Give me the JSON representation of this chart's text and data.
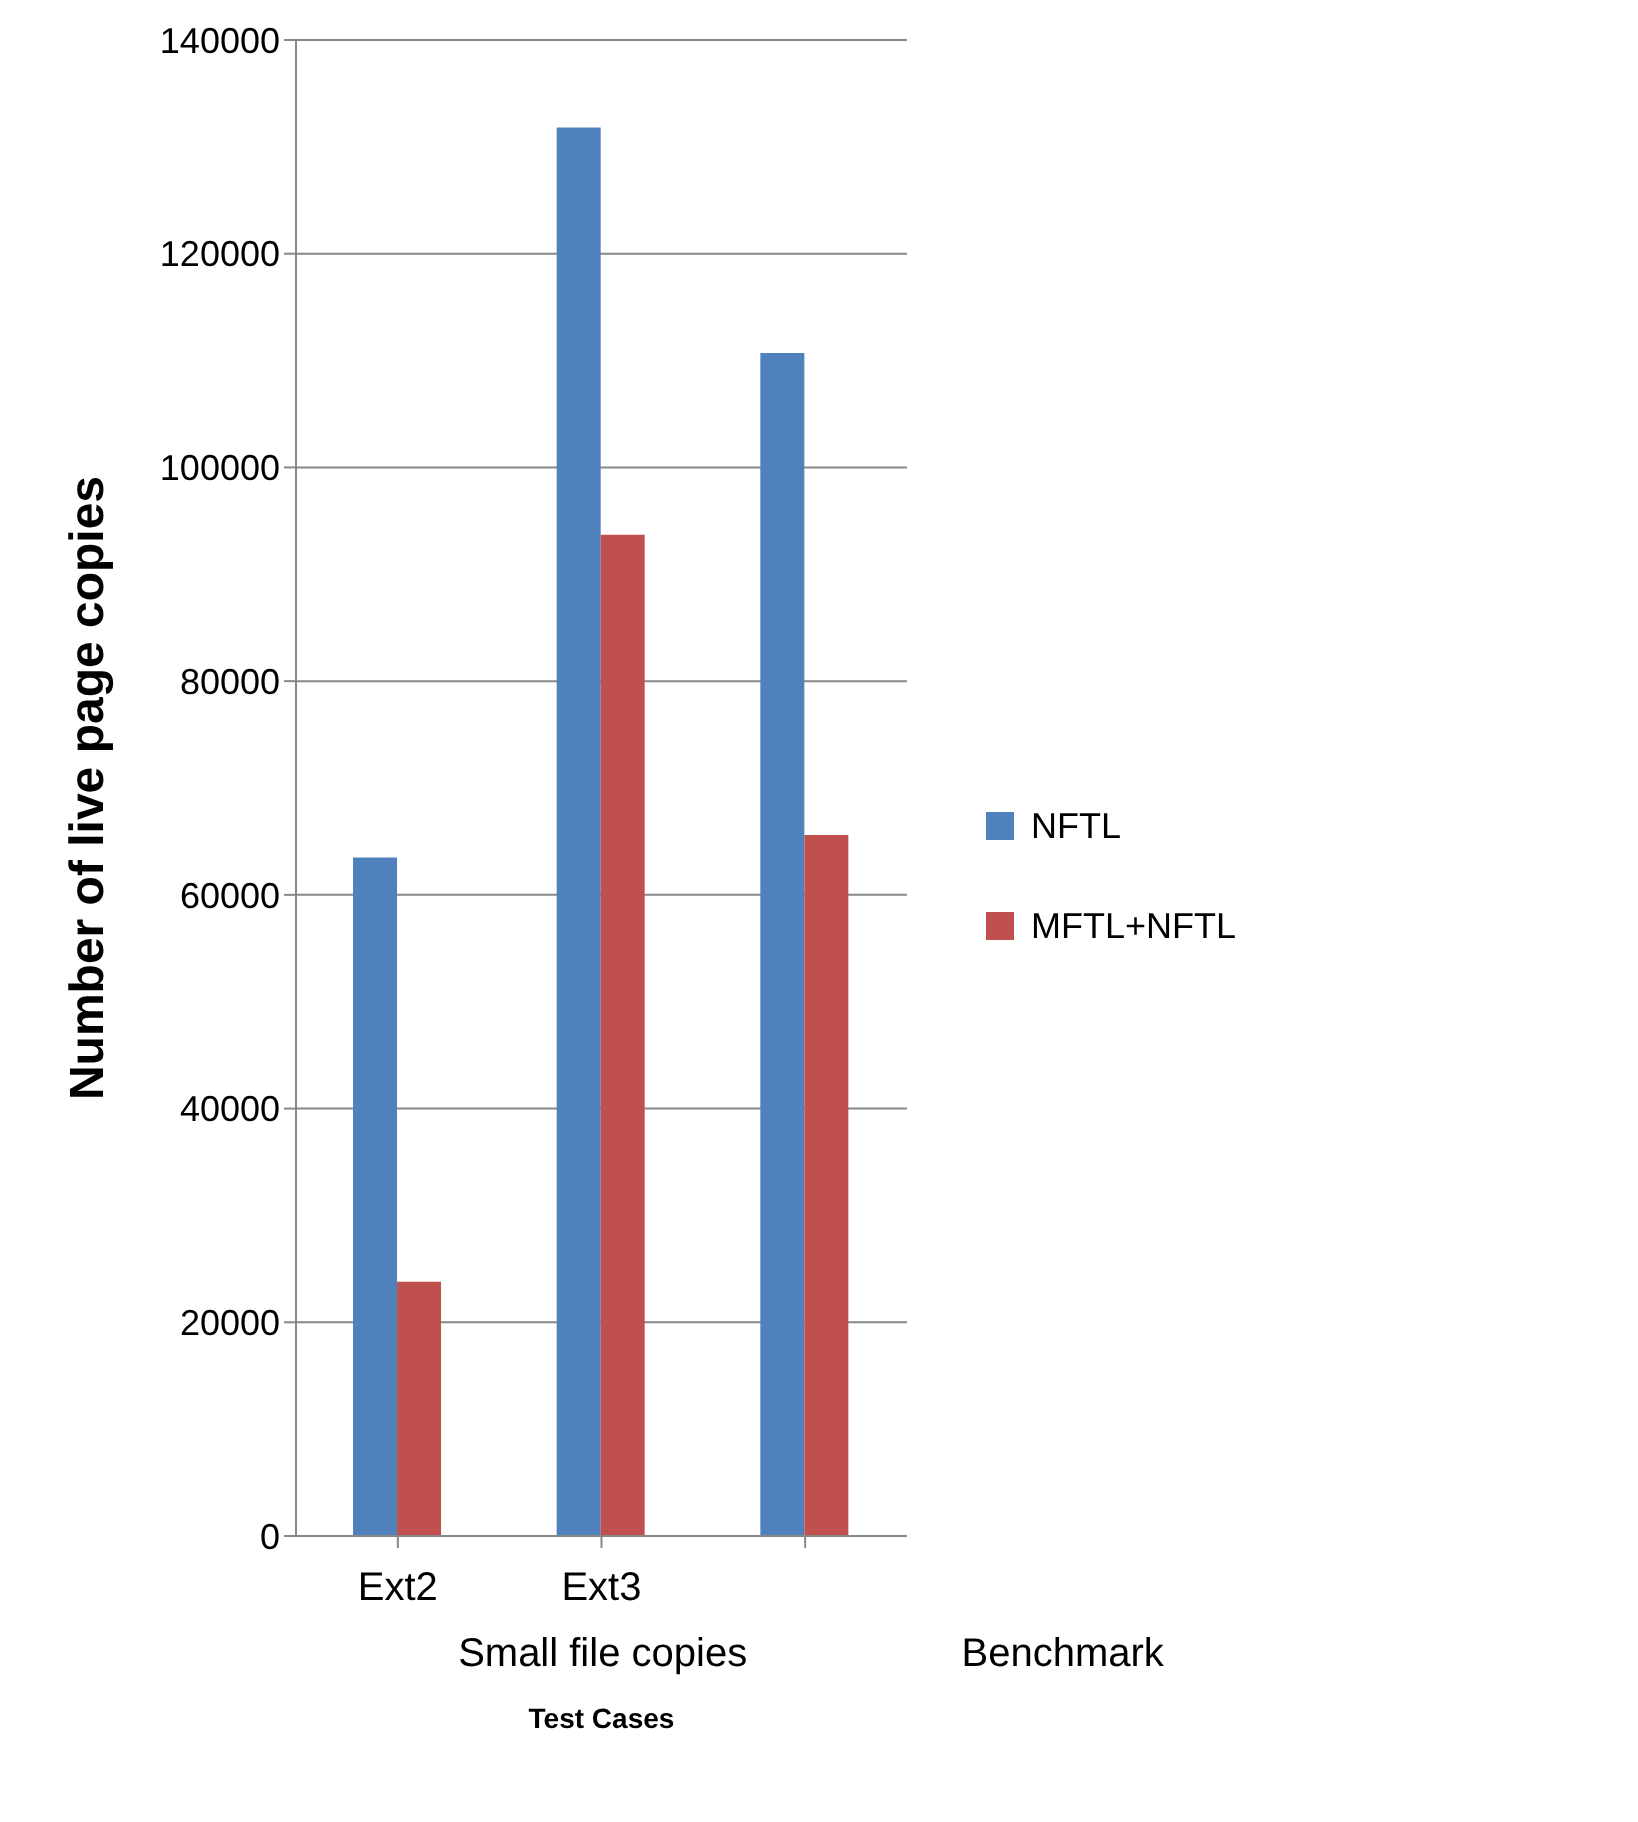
{
  "chart_data": {
    "type": "bar",
    "xlabel": "Test Cases",
    "ylabel": "Number of live page copies",
    "categories": [
      "Ext2",
      "Ext3",
      null
    ],
    "series": [
      {
        "name": "NFTL",
        "color": "#4f81bd",
        "values": [
          63500,
          131800,
          110700
        ]
      },
      {
        "name": "MFTL+NFTL",
        "color": "#c0504d",
        "values": [
          23800,
          93700,
          65600
        ]
      }
    ],
    "ylim": [
      0,
      140000
    ],
    "yticks": [
      0,
      20000,
      40000,
      60000,
      80000,
      100000,
      120000,
      140000
    ],
    "grid": "y",
    "legend": "right",
    "annotations": [
      "Small file copies",
      "Benchmark"
    ]
  }
}
